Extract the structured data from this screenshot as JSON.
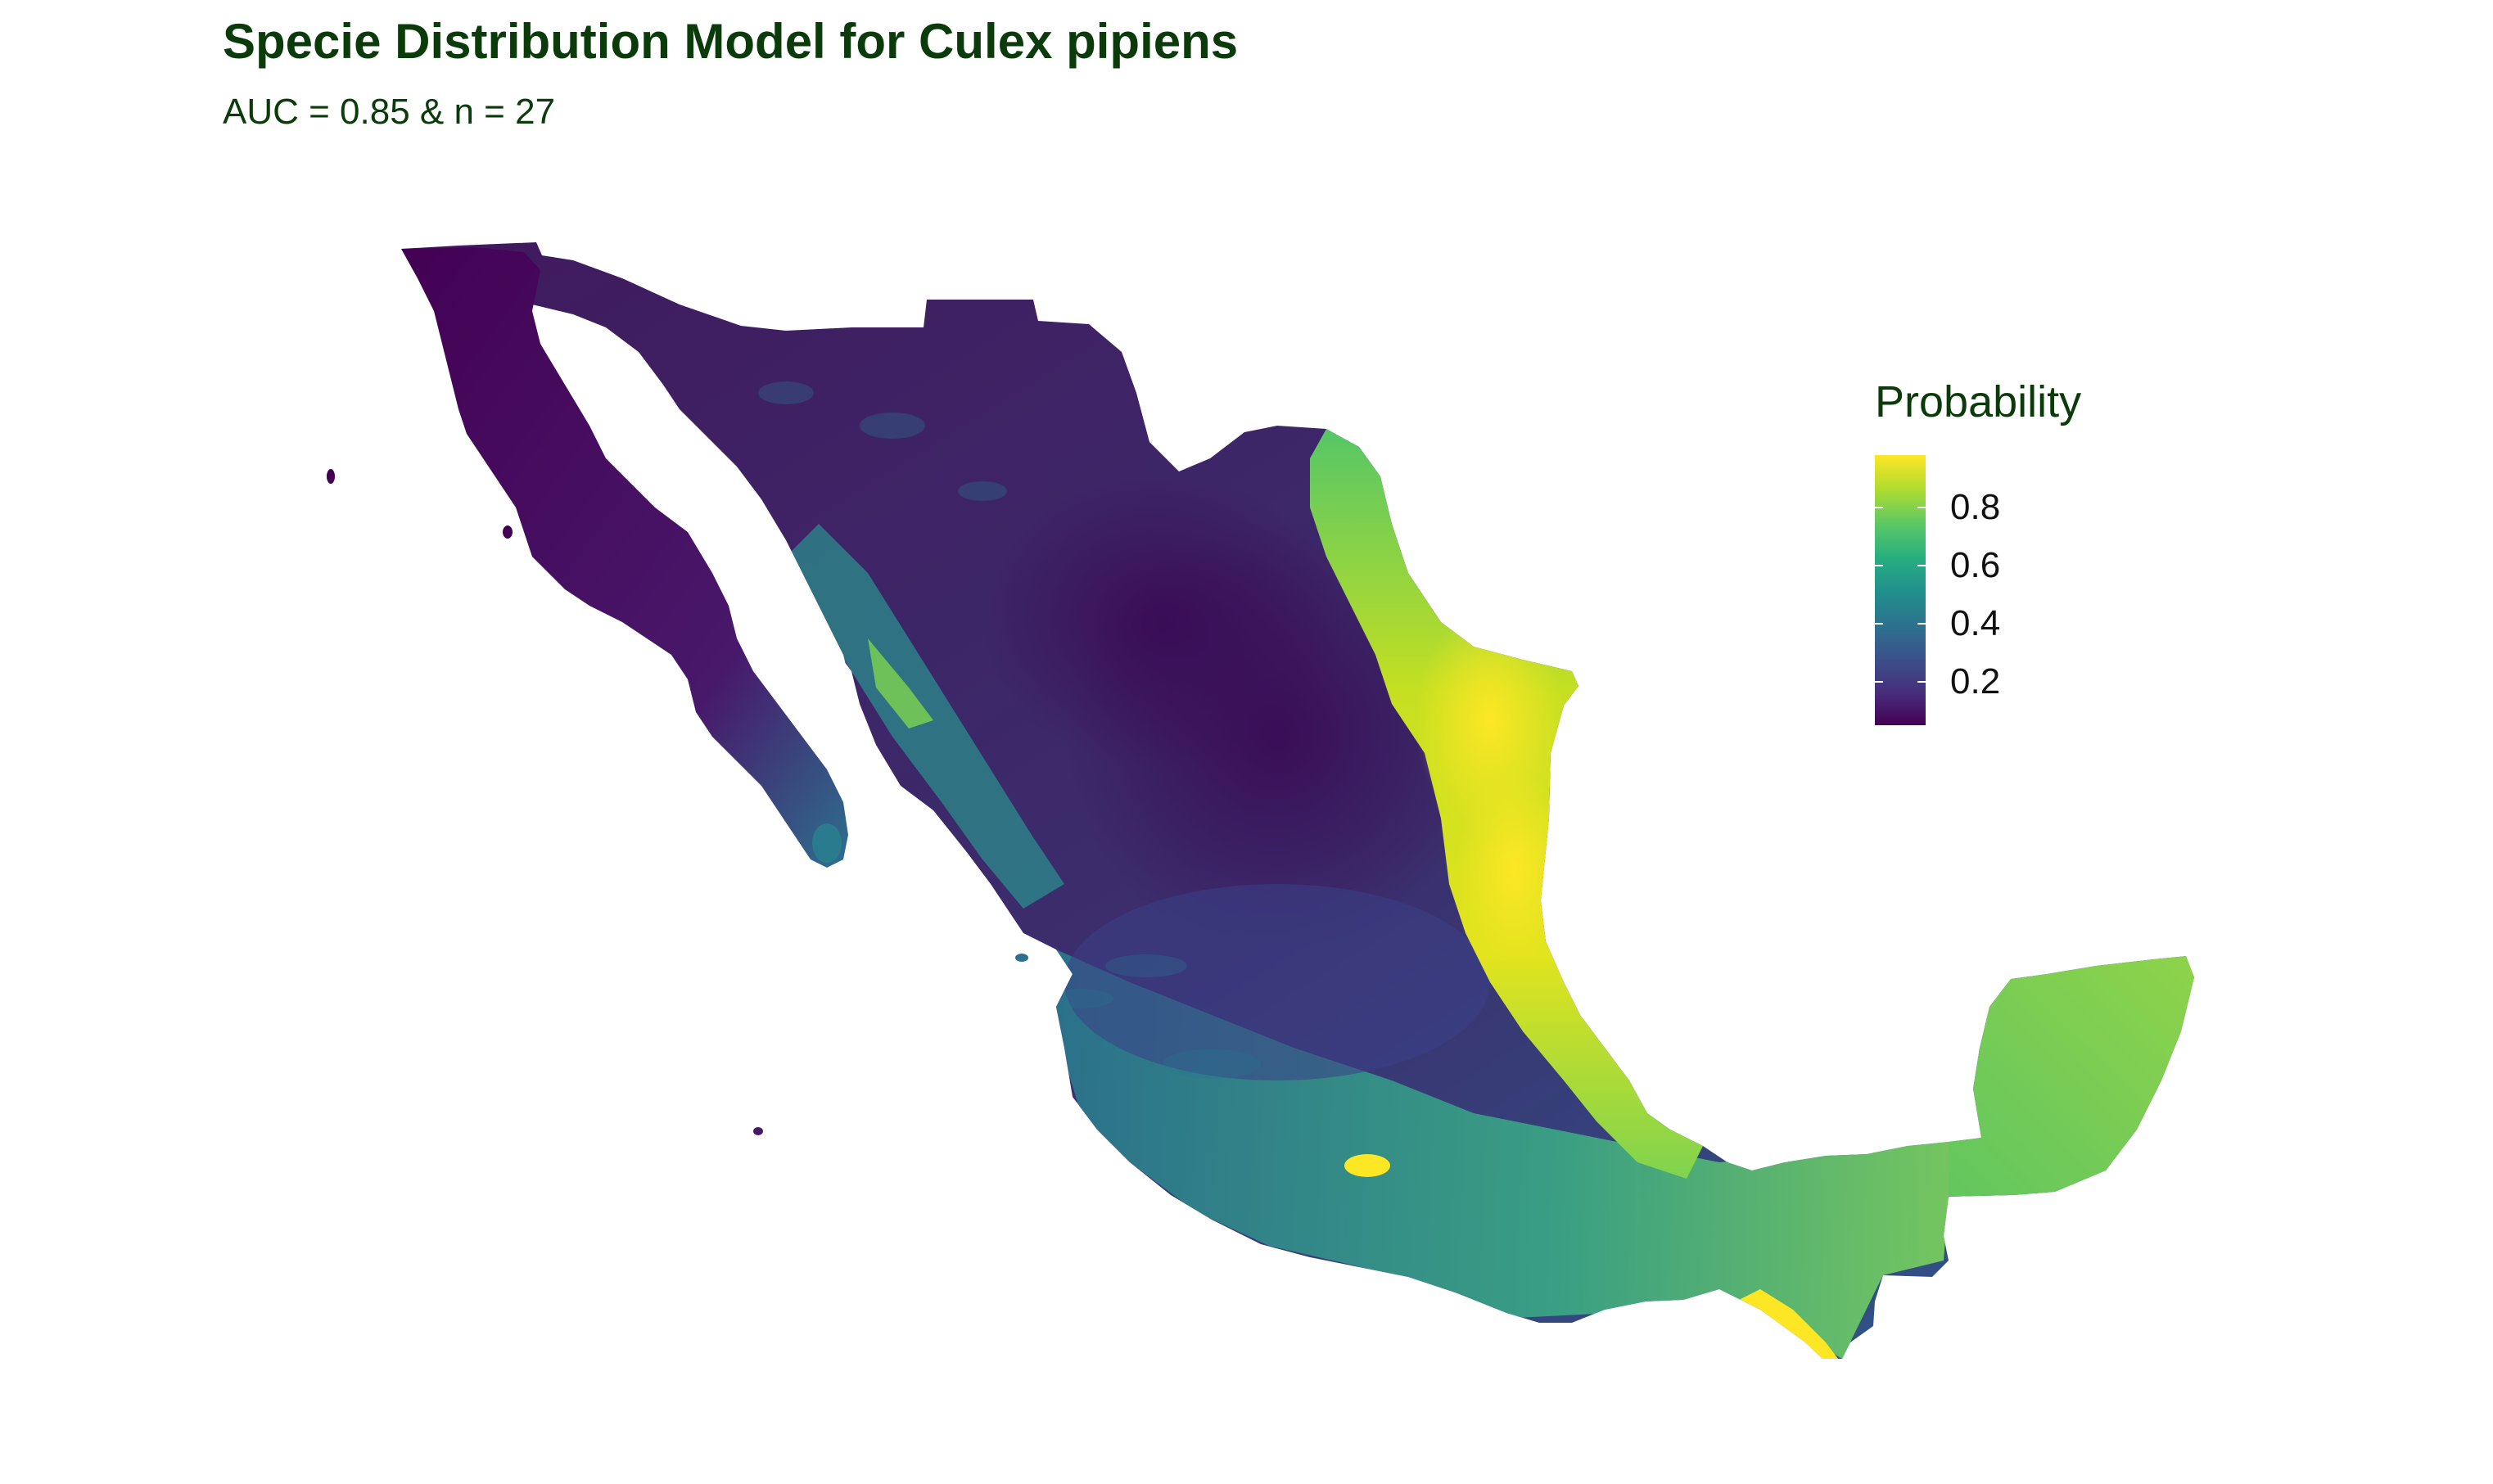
{
  "title": "Specie Distribution Model for Culex pipiens",
  "subtitle": "AUC = 0.85 & n = 27",
  "legend": {
    "title": "Probability",
    "colorscale": "viridis",
    "range": [
      0.05,
      0.98
    ],
    "ticks": [
      {
        "value": 0.2,
        "label": "0.2"
      },
      {
        "value": 0.4,
        "label": "0.4"
      },
      {
        "value": 0.6,
        "label": "0.6"
      },
      {
        "value": 0.8,
        "label": "0.8"
      }
    ]
  },
  "colors": {
    "title": "#0b3b0b",
    "low": "#440154",
    "mid": "#21918c",
    "high": "#fde725"
  }
}
